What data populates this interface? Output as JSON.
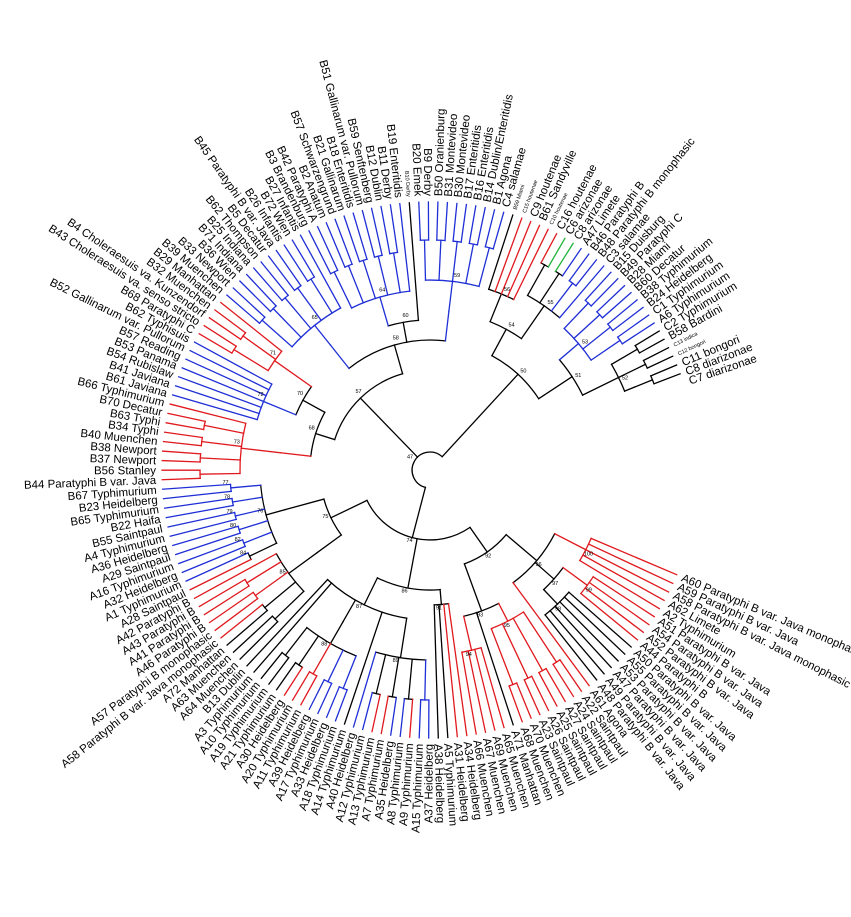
{
  "colors": {
    "black": "#000000",
    "red": "#e0191e",
    "blue": "#1f2fd6",
    "green": "#1fb53a"
  },
  "leaves": [
    "A60 Paratyphi B var. Java monophasic",
    "A59 Paratyphi B var. Java",
    "A58 Paratyphi B var. Java monophasic",
    "A62 Limete",
    "A2 Typhimurium",
    "A51 Paratyphi B var. Java",
    "A54 Paratyphi B var. Java",
    "A52 Paratyphi B var. Java",
    "A44 Paratyphi B",
    "A50 Paratyphi B var. Java",
    "A55 Paratyphi B var. Java",
    "A53 Paratyphi B var. Java",
    "A47 Paratyphi B var. Java",
    "A49 Paratyphi B var. Java",
    "A48 Paratyphi B var. Java",
    "A61 Agona",
    "A22 Saintpaul",
    "A24 Saintpaul",
    "A27 Saintpaul",
    "A25 Saintpaul",
    "A26 Saintpaul",
    "A23 Saintpaul",
    "A70 Muenchen",
    "A68 Muenchen",
    "A71 Manhattan",
    "A65 Muenchen",
    "A69 Muenchen",
    "A67 Muenchen",
    "A66 Muenchen",
    "A34 Heidelberg",
    "A31 Heidelberg",
    "A5 Typhimurium",
    "A38 Heidelberg",
    "A37 Heidelberg",
    "A15 Typhimurium",
    "A9 Typhimurium",
    "A8 Typhimurium",
    "A35 Heidelberg",
    "A7 Typhimurium",
    "A13 Typhimurium",
    "A12 Typhimurium",
    "A40 Heidelberg",
    "A14 Typhimurium",
    "A18 Typhimurium",
    "A33 Heidelberg",
    "A17 Typhimurium",
    "A39 Heidelberg",
    "A11 Typhimurium",
    "A20 Typhimurium",
    "A30 Heidelberg",
    "A21 Typhimurium",
    "A19 Typhimurium",
    "A10 Typhimurium",
    "A3 Typhimurium",
    "B13 Dublin",
    "A64 Muenchen",
    "A63 Muenchen",
    "A72 Manhattan",
    "A58 Paratyphi B var. Java monophasic",
    "A57 Paratyphi B monophasic",
    "A46 Paratyphi B",
    "A41 Paratyphi B",
    "A43 Paratyphi B",
    "A42 Paratyphi B",
    "A28 Saintpaul",
    "A1 Typhimurium",
    "A32 Heidelberg",
    "A16 Typhimurium",
    "A29 Saintpaul",
    "A36 Heidelberg",
    "A4 Typhimurium",
    "B55 Saintpaul",
    "B22 Haifa",
    "B65 Typhimurium",
    "B23 Heidelberg",
    "B67 Typhimurium",
    "B44 Paratyphi B var. Java",
    "B56 Stanley",
    "B37 Newport",
    "B38 Newport",
    "B40 Muenchen",
    "B34 Typhi",
    "B63 Typhi",
    "B70 Decatur",
    "B66 Typhimurium",
    "B61 Javiana",
    "B41 Javiana",
    "B54 Rubislaw",
    "B53 Panama",
    "B57 Reading",
    "B52 Gallinarum var. Pullorum",
    "B62 Typhisuis",
    "B68 Paratyphi C",
    "B43 Choleraesuis va. senso stricto",
    "B4 Choleraesuis va. Kunzendorf",
    "B32 Muenchen",
    "B29 Manhattan",
    "B39 Muenchen",
    "B33 Newport",
    "B36 Wien",
    "B71 Indiana",
    "B25 Indiana",
    "B62 Thompson",
    "B5 Decatur",
    "B45 Paratyphi B var. Java",
    "B26 Infantis",
    "B72 Wien",
    "B27 Infantis",
    "B3 Brandenburg",
    "B42 Paratyphi A",
    "B2 Anatum",
    "B57 Schwarzengrund",
    "B21 Gallinarum",
    "B18 Enteritidis",
    "B51 Gallinarum var. Pullorum",
    "B59 Senftenberg",
    "B12 Dublin",
    "B11 Derby",
    "B19 Enteritidis",
    "B10 Derby",
    "B20 Emek",
    "B9 Derby",
    "B50 Oranienburg",
    "B31 Montevideo",
    "B30 Montevideo",
    "B17 Enteritidis",
    "B16 Enteritidis",
    "B14 Dublin/Enteritidis",
    "B1 Agona",
    "C4 salamae",
    "B59 Miami",
    "C15 houtenae",
    "C9 houtenae",
    "B61 Sandyville",
    "C10 houtenae",
    "C16 houtenae",
    "C6 arizonae",
    "C8 arizonae",
    "A47 Limete",
    "B46 Paratyphi B",
    "B48 Paratyphi B monophasic",
    "C3 salamae",
    "B15 Duisburg",
    "B49 Paratyphi C",
    "B28 Miami",
    "B60 Decatur",
    "B38 Typhimurium",
    "B24 Heidelberg",
    "C1 Typhimurium",
    "A6 Typhimurium",
    "C2 Typhimurium",
    "B58 Bardini",
    "C13 indica",
    "C12 bongori",
    "C11 bongori",
    "C8 diarizonae",
    "C7 diarizonae"
  ],
  "small_leaves": [
    119,
    130,
    131,
    134,
    152,
    153
  ],
  "red_leaves": [
    0,
    1,
    2,
    3,
    4,
    5,
    6,
    7,
    8,
    15,
    16,
    17,
    18,
    19,
    20,
    21,
    22,
    23,
    25,
    26,
    27,
    28,
    29,
    30,
    35,
    38,
    39,
    47,
    48,
    49,
    58,
    59,
    60,
    61,
    62,
    63,
    64,
    76,
    77,
    78,
    79,
    80,
    81,
    82,
    83,
    84,
    92,
    93,
    94,
    95,
    96,
    131,
    132,
    133,
    134,
    135
  ],
  "blue_leaves": [
    33,
    34,
    36,
    37,
    40,
    41,
    43,
    44,
    45,
    46,
    65,
    66,
    67,
    68,
    69,
    70,
    71,
    72,
    73,
    74,
    75,
    85,
    86,
    87,
    88,
    89,
    90,
    91,
    97,
    98,
    99,
    100,
    101,
    102,
    103,
    104,
    105,
    106,
    107,
    108,
    109,
    110,
    111,
    112,
    113,
    114,
    115,
    116,
    117,
    118,
    120,
    121,
    122,
    123,
    124,
    125,
    126,
    127,
    128,
    129,
    138,
    139,
    140,
    141,
    142,
    143,
    144,
    145,
    146,
    147,
    148,
    149
  ],
  "green_leaves": [
    136,
    137
  ],
  "bootstrap": [
    "100",
    "99",
    "98",
    "97",
    "96",
    "95",
    "94",
    "93",
    "92",
    "91",
    "89",
    "88",
    "87",
    "86",
    "85",
    "84",
    "82",
    "80",
    "79",
    "78",
    "77",
    "76",
    "75",
    "74",
    "73",
    "72",
    "71",
    "70",
    "68",
    "65",
    "64",
    "60",
    "59",
    "58",
    "57",
    "56",
    "55",
    "54",
    "53",
    "52",
    "51",
    "50",
    "47"
  ]
}
